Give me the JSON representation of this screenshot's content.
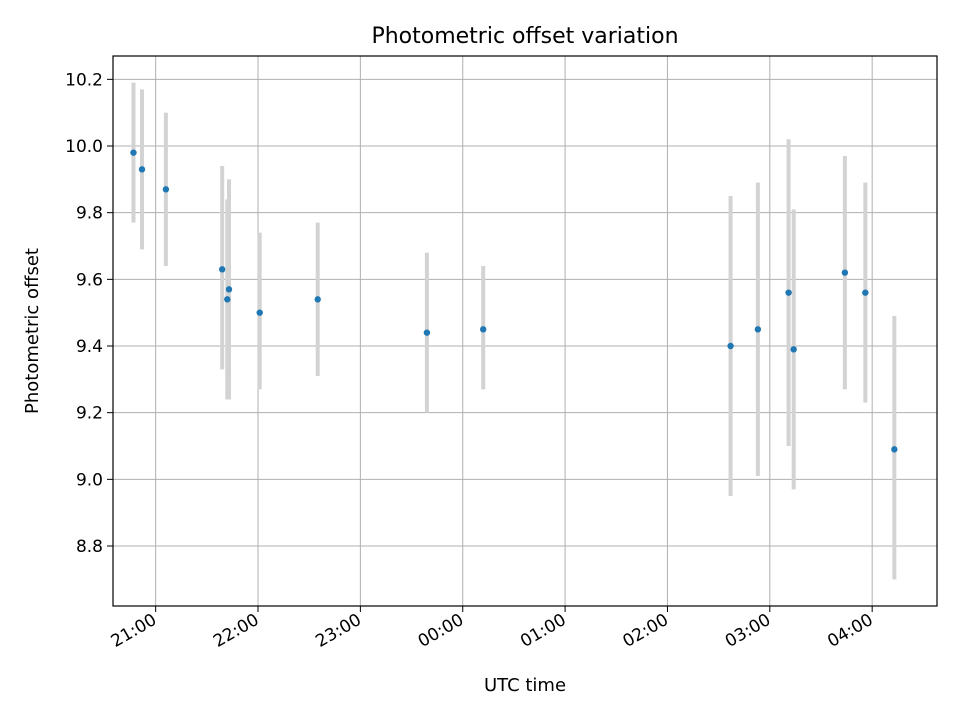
{
  "chart_data": {
    "type": "scatter",
    "title": "Photometric offset variation",
    "xlabel": "UTC time",
    "ylabel": "Photometric offset",
    "x_unit": "UTC hour-of-night (21:00 to 04:00)",
    "xlim": [
      "20:35",
      "04:38"
    ],
    "ylim": [
      8.62,
      10.27
    ],
    "grid": true,
    "x_ticks": [
      "21:00",
      "22:00",
      "23:00",
      "00:00",
      "01:00",
      "02:00",
      "03:00",
      "04:00"
    ],
    "y_ticks": [
      "8.8",
      "9.0",
      "9.2",
      "9.4",
      "9.6",
      "9.8",
      "10.0",
      "10.2"
    ],
    "series": [
      {
        "marker_color": "#1f77b4",
        "errorbar_color": "#d3d3d3",
        "points": [
          {
            "x": "20:47",
            "y": 9.98,
            "ylow": 9.77,
            "yhigh": 10.19
          },
          {
            "x": "20:52",
            "y": 9.93,
            "ylow": 9.69,
            "yhigh": 10.17
          },
          {
            "x": "21:06",
            "y": 9.87,
            "ylow": 9.64,
            "yhigh": 10.1
          },
          {
            "x": "21:39",
            "y": 9.63,
            "ylow": 9.33,
            "yhigh": 9.94
          },
          {
            "x": "21:42",
            "y": 9.54,
            "ylow": 9.24,
            "yhigh": 9.84
          },
          {
            "x": "21:43",
            "y": 9.57,
            "ylow": 9.24,
            "yhigh": 9.9
          },
          {
            "x": "22:01",
            "y": 9.5,
            "ylow": 9.27,
            "yhigh": 9.74
          },
          {
            "x": "22:35",
            "y": 9.54,
            "ylow": 9.31,
            "yhigh": 9.77
          },
          {
            "x": "23:39",
            "y": 9.44,
            "ylow": 9.2,
            "yhigh": 9.68
          },
          {
            "x": "00:12",
            "y": 9.45,
            "ylow": 9.27,
            "yhigh": 9.64
          },
          {
            "x": "02:37",
            "y": 9.4,
            "ylow": 8.95,
            "yhigh": 9.85
          },
          {
            "x": "02:53",
            "y": 9.45,
            "ylow": 9.01,
            "yhigh": 9.89
          },
          {
            "x": "03:11",
            "y": 9.56,
            "ylow": 9.1,
            "yhigh": 10.02
          },
          {
            "x": "03:14",
            "y": 9.39,
            "ylow": 8.97,
            "yhigh": 9.81
          },
          {
            "x": "03:44",
            "y": 9.62,
            "ylow": 9.27,
            "yhigh": 9.97
          },
          {
            "x": "03:56",
            "y": 9.56,
            "ylow": 9.23,
            "yhigh": 9.89
          },
          {
            "x": "04:13",
            "y": 9.09,
            "ylow": 8.7,
            "yhigh": 9.49
          }
        ]
      }
    ]
  }
}
